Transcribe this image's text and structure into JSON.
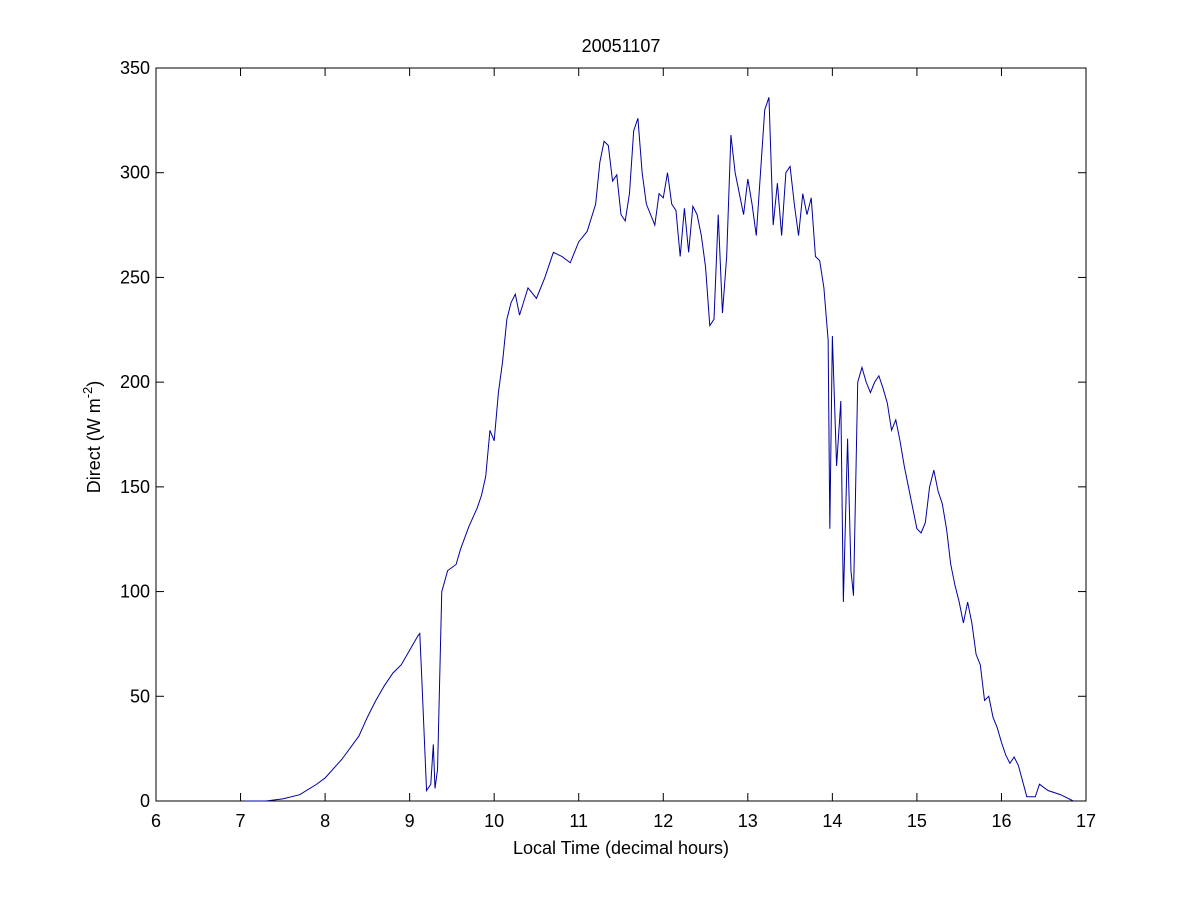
{
  "chart_data": {
    "type": "line",
    "title": "20051107",
    "xlabel": "Local Time (decimal hours)",
    "ylabel": [
      "Direct (W m",
      "-2",
      ")"
    ],
    "xlim": [
      6,
      17
    ],
    "xticks": [
      6,
      7,
      8,
      9,
      10,
      11,
      12,
      13,
      14,
      15,
      16,
      17
    ],
    "ylim": [
      0,
      350
    ],
    "yticks": [
      0,
      50,
      100,
      150,
      200,
      250,
      300,
      350
    ],
    "series": [
      {
        "color": "#0000a0",
        "x": [
          7.05,
          7.3,
          7.5,
          7.7,
          7.9,
          8.0,
          8.2,
          8.4,
          8.5,
          8.6,
          8.7,
          8.8,
          8.9,
          9.0,
          9.1,
          9.12,
          9.14,
          9.2,
          9.25,
          9.28,
          9.3,
          9.33,
          9.38,
          9.45,
          9.55,
          9.6,
          9.7,
          9.8,
          9.85,
          9.9,
          9.95,
          10.0,
          10.05,
          10.1,
          10.15,
          10.2,
          10.25,
          10.3,
          10.4,
          10.5,
          10.6,
          10.7,
          10.8,
          10.9,
          11.0,
          11.1,
          11.2,
          11.25,
          11.3,
          11.35,
          11.4,
          11.45,
          11.5,
          11.55,
          11.6,
          11.65,
          11.7,
          11.75,
          11.8,
          11.85,
          11.9,
          11.95,
          12.0,
          12.05,
          12.1,
          12.15,
          12.2,
          12.25,
          12.3,
          12.35,
          12.4,
          12.45,
          12.5,
          12.55,
          12.6,
          12.65,
          12.7,
          12.75,
          12.8,
          12.85,
          12.9,
          12.95,
          13.0,
          13.05,
          13.1,
          13.15,
          13.2,
          13.25,
          13.3,
          13.35,
          13.4,
          13.45,
          13.5,
          13.55,
          13.6,
          13.65,
          13.7,
          13.75,
          13.8,
          13.85,
          13.9,
          13.95,
          13.97,
          14.0,
          14.05,
          14.1,
          14.13,
          14.18,
          14.22,
          14.25,
          14.3,
          14.35,
          14.4,
          14.45,
          14.5,
          14.55,
          14.6,
          14.65,
          14.7,
          14.75,
          14.8,
          14.85,
          14.9,
          14.95,
          15.0,
          15.05,
          15.1,
          15.15,
          15.2,
          15.25,
          15.3,
          15.35,
          15.4,
          15.45,
          15.5,
          15.55,
          15.6,
          15.65,
          15.7,
          15.75,
          15.8,
          15.85,
          15.9,
          15.95,
          16.0,
          16.05,
          16.1,
          16.15,
          16.2,
          16.3,
          16.4,
          16.45,
          16.55,
          16.7,
          16.85
        ],
        "values": [
          0,
          0,
          1,
          3,
          8,
          11,
          20,
          31,
          40,
          48,
          55,
          61,
          65,
          72,
          79,
          80,
          62,
          5,
          8,
          27,
          6,
          15,
          100,
          110,
          113,
          120,
          131,
          140,
          146,
          155,
          177,
          172,
          195,
          210,
          230,
          238,
          242,
          232,
          245,
          240,
          250,
          262,
          260,
          257,
          267,
          272,
          285,
          305,
          315,
          313,
          296,
          299,
          280,
          277,
          290,
          320,
          326,
          300,
          285,
          280,
          275,
          290,
          288,
          300,
          285,
          282,
          260,
          283,
          262,
          284,
          280,
          270,
          255,
          227,
          230,
          280,
          233,
          260,
          318,
          300,
          290,
          280,
          297,
          285,
          270,
          300,
          330,
          336,
          275,
          295,
          270,
          300,
          303,
          285,
          270,
          290,
          280,
          288,
          260,
          258,
          245,
          220,
          130,
          222,
          160,
          191,
          95,
          173,
          110,
          98,
          200,
          207,
          200,
          195,
          200,
          203,
          197,
          190,
          177,
          182,
          172,
          160,
          150,
          140,
          130,
          128,
          133,
          150,
          158,
          148,
          142,
          130,
          113,
          103,
          95,
          85,
          95,
          85,
          70,
          65,
          48,
          50,
          40,
          35,
          28,
          22,
          18,
          21,
          17,
          2,
          2,
          8,
          5,
          3,
          0
        ]
      }
    ]
  }
}
